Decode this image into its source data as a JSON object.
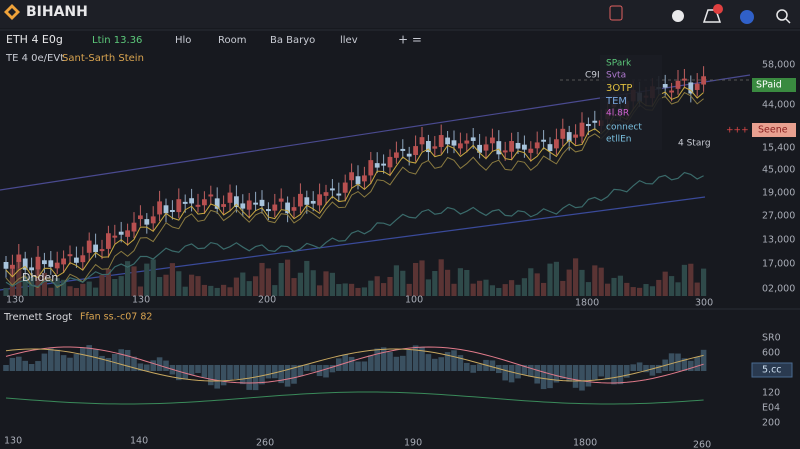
{
  "header": {
    "logo": "BIHANH"
  },
  "toolbar": {
    "symbol": "ETH 4 E0g",
    "price": "Ltin 13.36",
    "items": [
      "Hlo",
      "Room",
      "Ba Baryo",
      "llev"
    ],
    "add": "+ ="
  },
  "chart": {
    "subtitle": "TE 4 0e/EVt",
    "subtitle_note": "Sant-Sarth Stein",
    "y_labels": [
      "58,000",
      "44,000",
      "15,400",
      "45,000",
      "19,000",
      "27,000",
      "13,000",
      "17,000",
      "02,000"
    ],
    "price_tag": "SPaid",
    "alert_tag": "Seene",
    "alert_marker": "+++",
    "volume_label": "Dhden",
    "x_labels": [
      "130",
      "130",
      "200",
      "100",
      "1800",
      "300"
    ],
    "legend": [
      "SPark",
      "Svta",
      "3OTP",
      "TEM",
      "4l.8R",
      "connect",
      "etllEn"
    ],
    "marker_labels": [
      "C9I",
      "4 Starg"
    ]
  },
  "oscillator": {
    "title": "Tremett Srogt",
    "params": "Ffan ss.-c07 82",
    "y_labels": [
      "SR0",
      "600",
      "120",
      "E04",
      "200"
    ],
    "value_tag": "5.cc",
    "x_labels": [
      "130",
      "140",
      "260",
      "190",
      "1800",
      "260"
    ]
  }
}
